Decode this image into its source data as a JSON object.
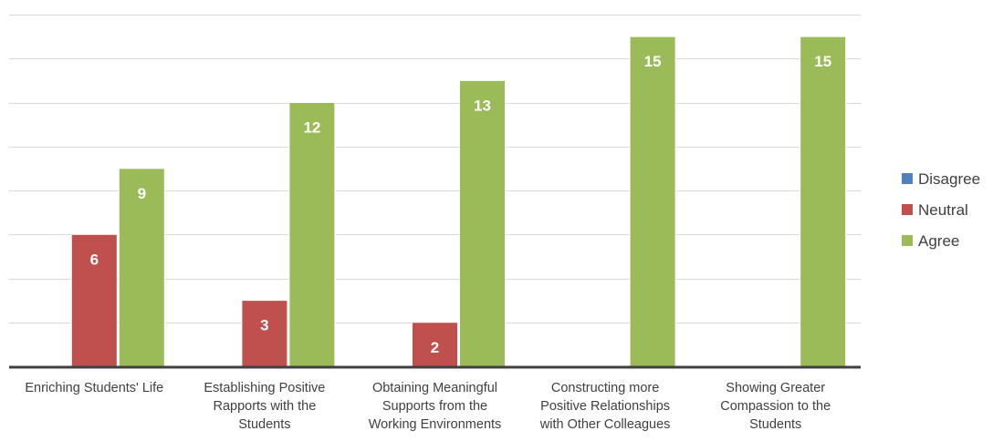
{
  "chart_data": {
    "type": "bar",
    "categories": [
      [
        "Enriching Students' Life"
      ],
      [
        "Establishing Positive",
        "Rapports with the",
        "Students"
      ],
      [
        "Obtaining Meaningful",
        "Supports from the",
        "Working Environments"
      ],
      [
        "Constructing more",
        "Positive Relationships",
        "with Other Colleagues"
      ],
      [
        "Showing Greater",
        "Compassion to the",
        "Students"
      ]
    ],
    "series": [
      {
        "name": "Disagree",
        "color": "#4f81bd",
        "values": [
          0,
          0,
          0,
          0,
          0
        ]
      },
      {
        "name": "Neutral",
        "color": "#c0504d",
        "values": [
          6,
          3,
          2,
          0,
          0
        ]
      },
      {
        "name": "Agree",
        "color": "#9bbb59",
        "values": [
          9,
          12,
          13,
          15,
          15
        ]
      }
    ],
    "ylim": [
      0,
      16
    ],
    "gridlines_every": 2,
    "grid": true,
    "data_labels": true,
    "legend_position": "right",
    "y_tick_labels_shown": false,
    "colors": {
      "grid": "#d9d9d9",
      "axis": "#404040",
      "data_label": "#ffffff",
      "category_label": "#404040"
    }
  }
}
